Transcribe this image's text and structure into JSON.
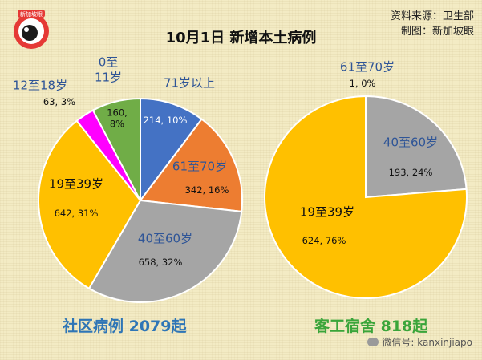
{
  "title": "10月1日 新增本土病例",
  "source": {
    "line1": "资料来源：卫生部",
    "line2": "制图：新加坡眼"
  },
  "logo_text": "新加坡眼",
  "watermark": "微信号: kanxinjiapo",
  "colors": {
    "blue": "#4472c4",
    "orange": "#ed7d31",
    "gray": "#a5a5a5",
    "yellow": "#ffc000",
    "magenta": "#ff00ff",
    "green": "#70ad47"
  },
  "chart_data": [
    {
      "type": "pie",
      "title": "社区病例 2079起",
      "slices": [
        {
          "label": "71岁以上",
          "count": 214,
          "pct": "10%",
          "color": "#4472c4",
          "value_text": "214, 10%"
        },
        {
          "label": "61至70岁",
          "count": 342,
          "pct": "16%",
          "color": "#ed7d31",
          "value_text": "342, 16%"
        },
        {
          "label": "40至60岁",
          "count": 658,
          "pct": "32%",
          "color": "#a5a5a5",
          "value_text": "658, 32%"
        },
        {
          "label": "19至39岁",
          "count": 642,
          "pct": "31%",
          "color": "#ffc000",
          "value_text": "642, 31%"
        },
        {
          "label": "12至18岁",
          "count": 63,
          "pct": "3%",
          "color": "#ff00ff",
          "value_text": "63, 3%"
        },
        {
          "label": "0至\n11岁",
          "count": 160,
          "pct": "8%",
          "color": "#70ad47",
          "value_text": "160,\n8%"
        }
      ]
    },
    {
      "type": "pie",
      "title": "客工宿舍 818起",
      "slices": [
        {
          "label": "61至70岁",
          "count": 1,
          "pct": "0%",
          "color": "#ed7d31",
          "value_text": "1, 0%"
        },
        {
          "label": "40至60岁",
          "count": 193,
          "pct": "24%",
          "color": "#a5a5a5",
          "value_text": "193, 24%"
        },
        {
          "label": "19至39岁",
          "count": 624,
          "pct": "76%",
          "color": "#ffc000",
          "value_text": "624, 76%"
        }
      ]
    }
  ]
}
